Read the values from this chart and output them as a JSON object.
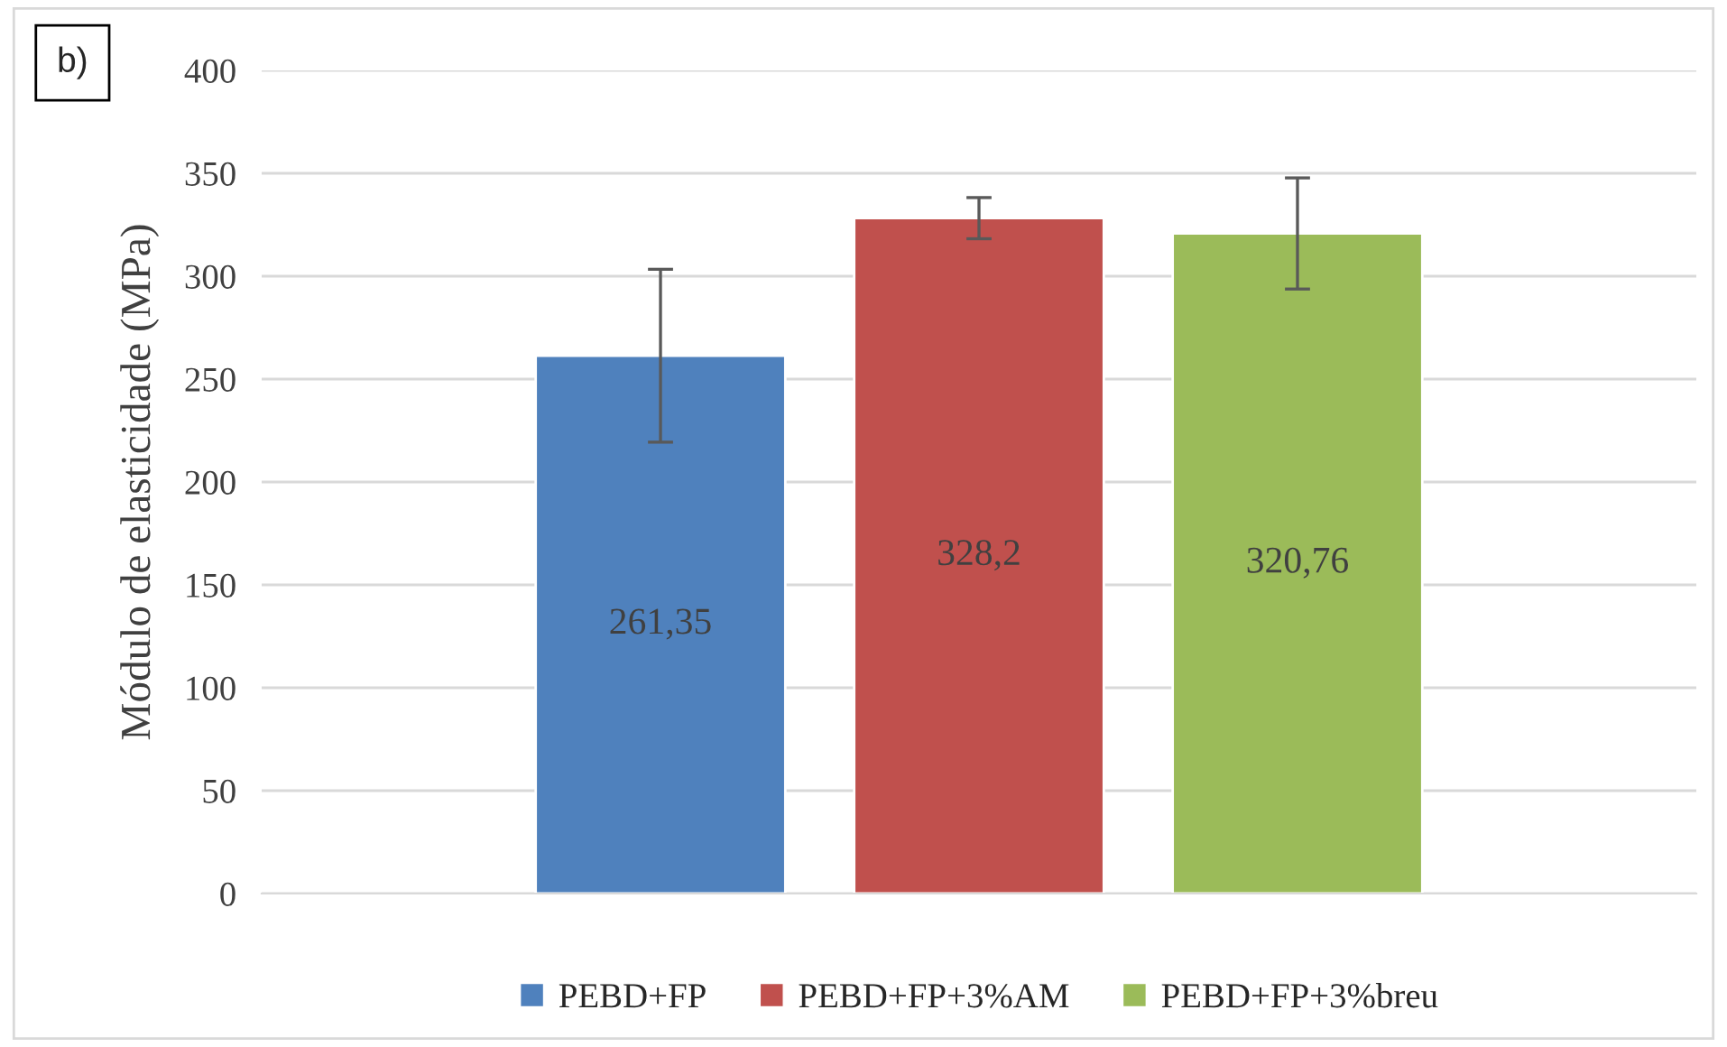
{
  "chart_data": {
    "type": "bar",
    "ylabel": "Módulo de elasticidade (MPa)",
    "annotations": [
      "b)"
    ],
    "categories": [
      null
    ],
    "series": [
      {
        "name": "PEBD+FP",
        "color": "#4f81bd",
        "values": [
          261.35
        ],
        "errors": [
          42
        ],
        "value_labels": [
          "261,35"
        ]
      },
      {
        "name": "PEBD+FP+3%AM",
        "color": "#c0504d",
        "values": [
          328.2
        ],
        "errors": [
          10
        ],
        "value_labels": [
          "328,2"
        ]
      },
      {
        "name": "PEBD+FP+3%breu",
        "color": "#9bbb59",
        "values": [
          320.76
        ],
        "errors": [
          27
        ],
        "value_labels": [
          "320,76"
        ]
      }
    ],
    "ylim": [
      0,
      400
    ],
    "yticks": [
      0,
      50,
      100,
      150,
      200,
      250,
      300,
      350,
      400
    ],
    "grid": "y",
    "legend": "bottom"
  }
}
